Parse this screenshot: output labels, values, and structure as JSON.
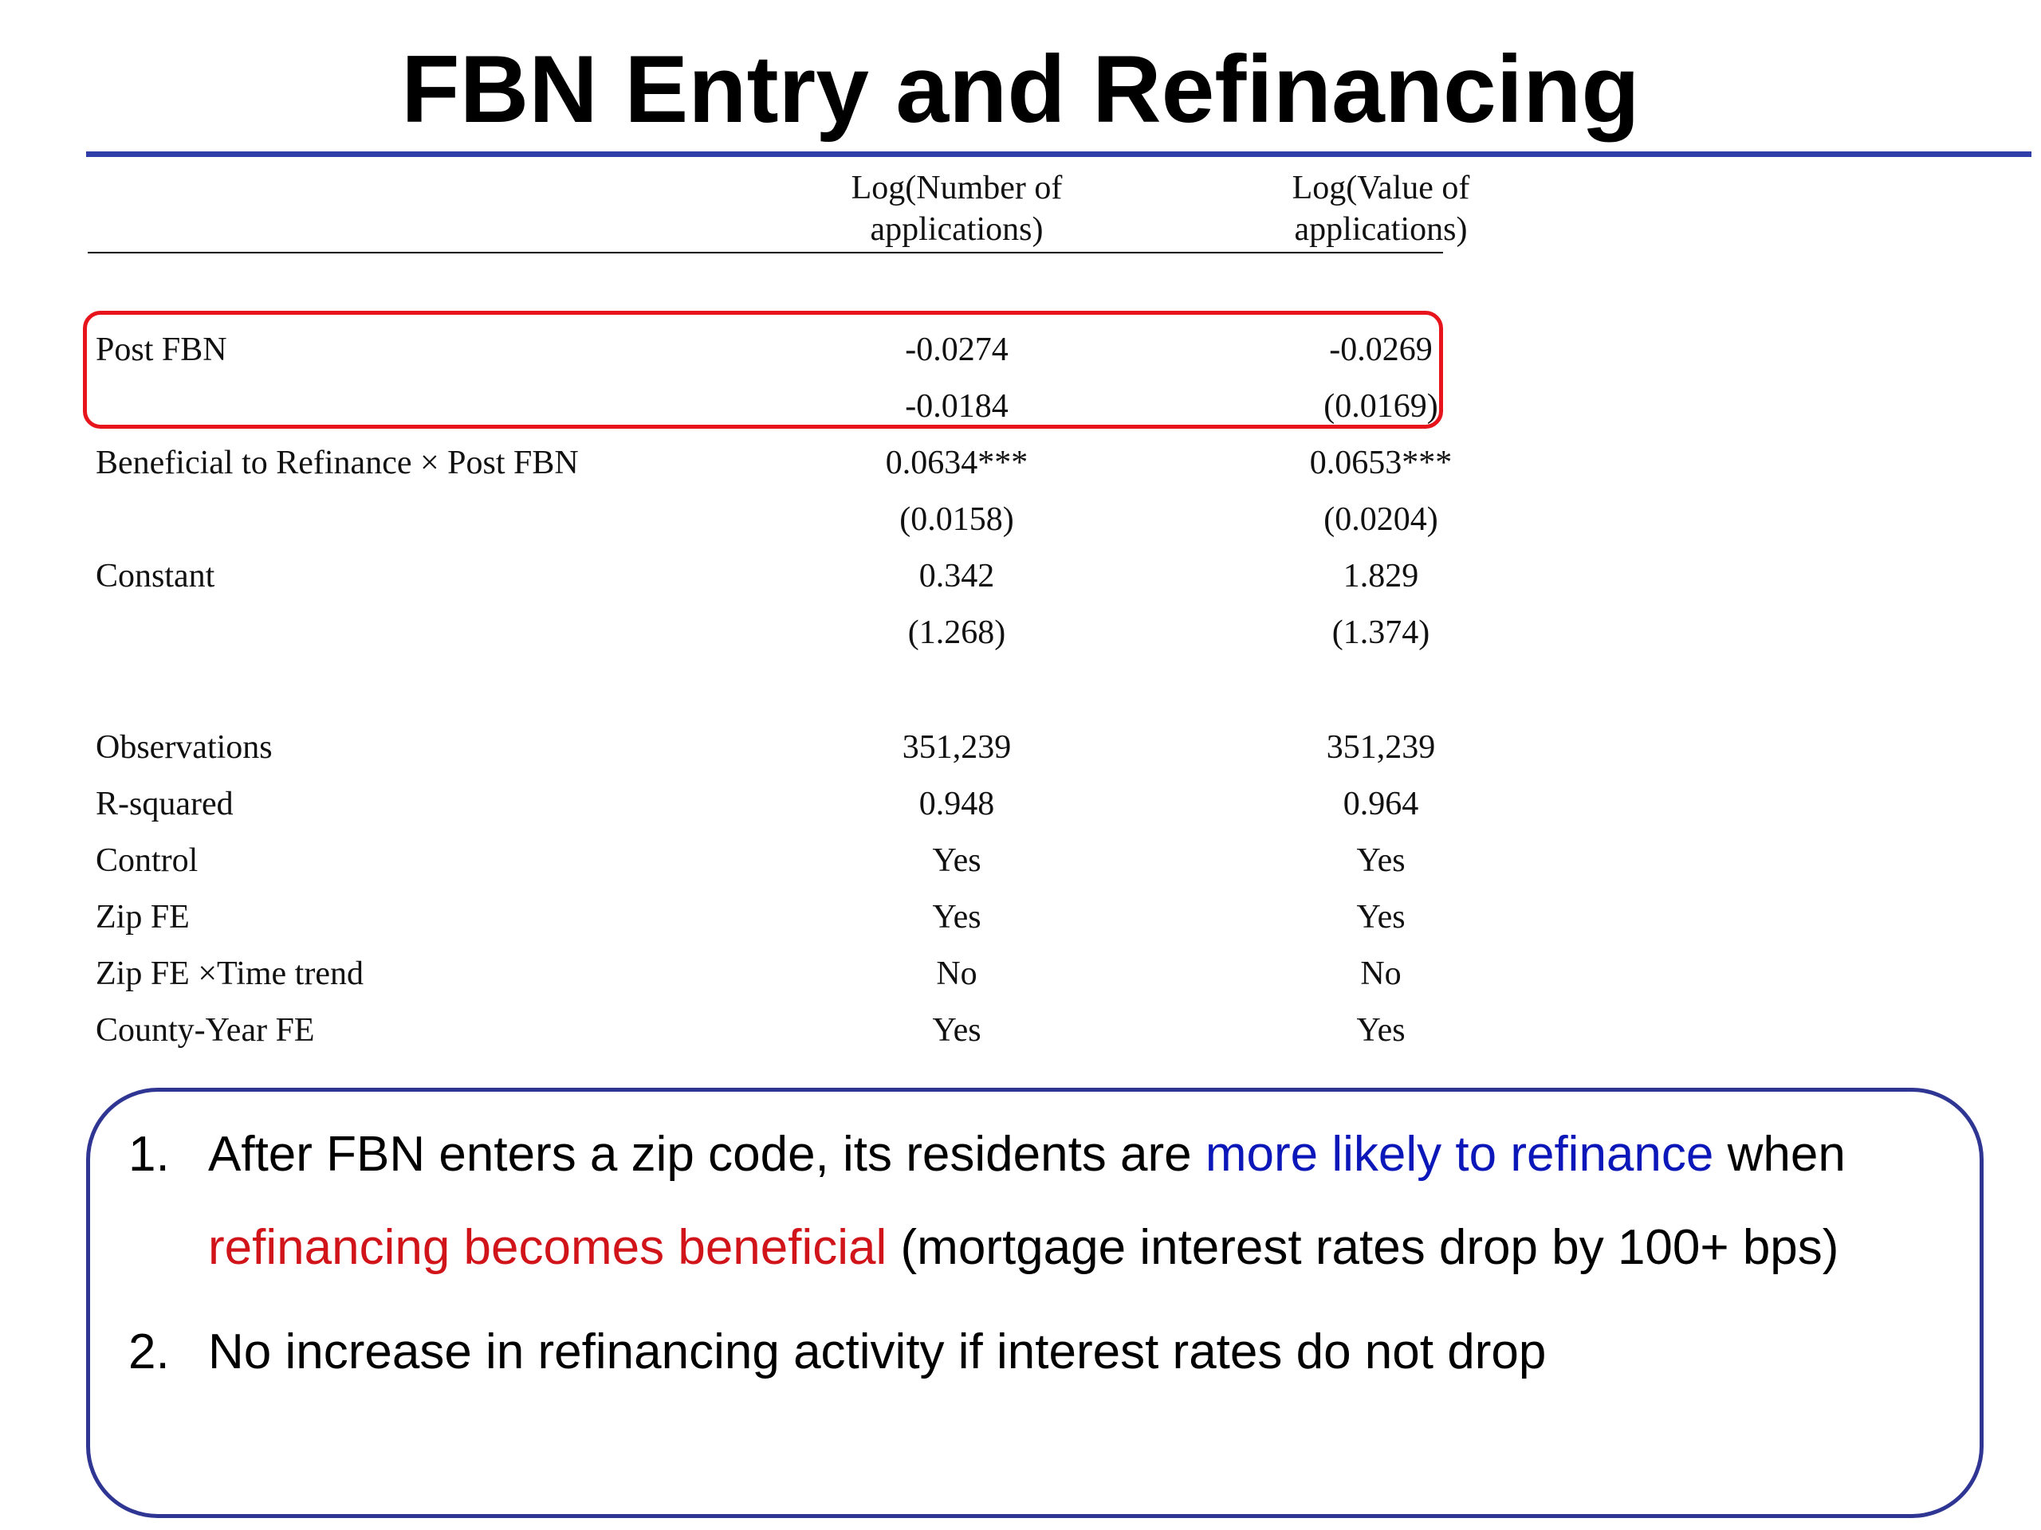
{
  "title": "FBN Entry and Refinancing",
  "colors": {
    "title_rule": "#2f3ea8",
    "highlight_box": "#e8141b",
    "takeaway_border": "#2e3592",
    "emphasis_blue": "#0b17b8",
    "emphasis_red": "#d0141a"
  },
  "table": {
    "columns": [
      "Log(Number of applications)",
      "Log(Value of applications)"
    ],
    "rows": [
      {
        "label": "Post FBN",
        "v1": "-0.0274",
        "v2": "-0.0269"
      },
      {
        "label": "",
        "v1": "-0.0184",
        "v2": "(0.0169)"
      },
      {
        "label": "Beneficial to Refinance × Post FBN",
        "v1": "0.0634***",
        "v2": "0.0653***"
      },
      {
        "label": "",
        "v1": "(0.0158)",
        "v2": "(0.0204)"
      },
      {
        "label": "Constant",
        "v1": "0.342",
        "v2": "1.829"
      },
      {
        "label": "",
        "v1": "(1.268)",
        "v2": "(1.374)"
      },
      {
        "label": "Observations",
        "v1": "351,239",
        "v2": "351,239"
      },
      {
        "label": "R-squared",
        "v1": "0.948",
        "v2": "0.964"
      },
      {
        "label": "Control",
        "v1": "Yes",
        "v2": "Yes"
      },
      {
        "label": "Zip FE",
        "v1": "Yes",
        "v2": "Yes"
      },
      {
        "label": "Zip FE ×Time trend",
        "v1": "No",
        "v2": "No"
      },
      {
        "label": "County-Year FE",
        "v1": "Yes",
        "v2": "Yes"
      }
    ]
  },
  "takeaways": {
    "p1_num": "1.",
    "p1_part1": "After FBN enters a zip code, its residents are ",
    "p1_blue": "more likely to refinance",
    "p1_part2": " when ",
    "p1_red": "refinancing becomes beneficial",
    "p1_part3": " (mortgage interest rates drop by 100+ bps)",
    "p2_num": "2.",
    "p2_text": "No increase in refinancing activity if interest rates do not drop"
  }
}
